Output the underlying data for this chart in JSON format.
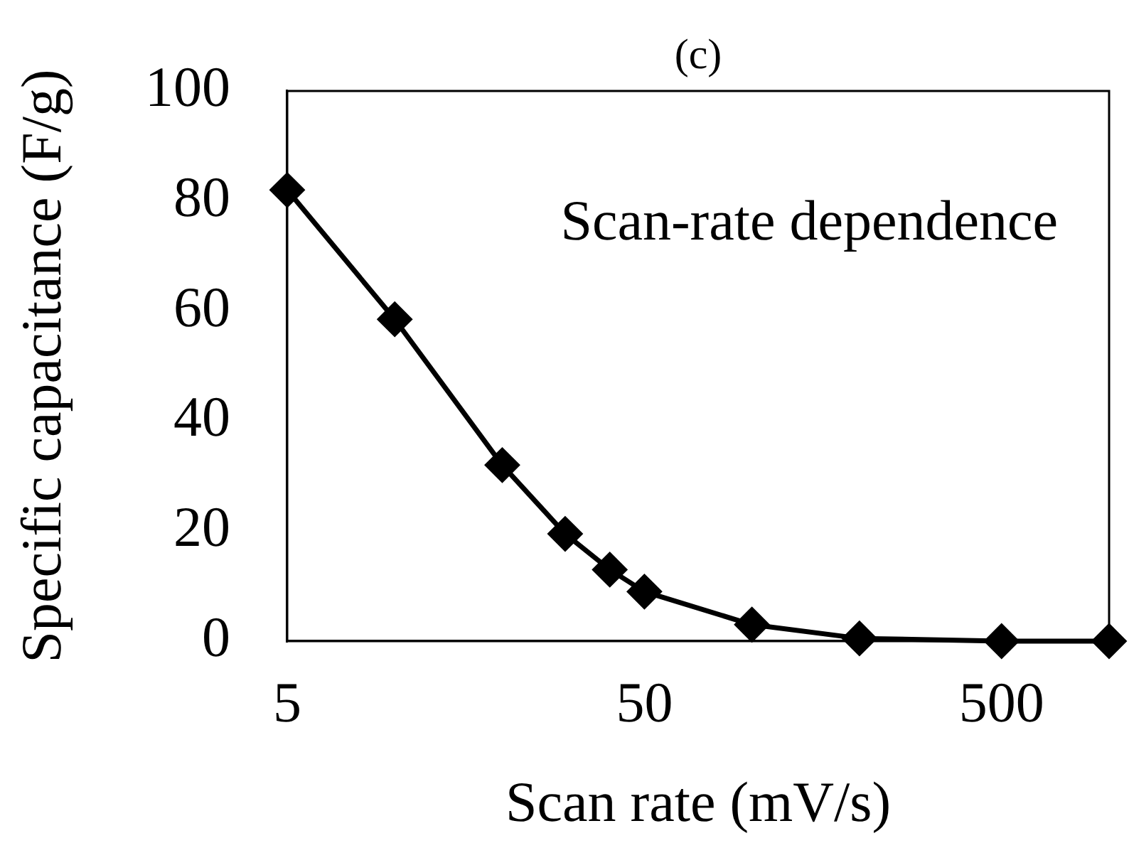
{
  "chart_data": {
    "type": "line",
    "title": "(c)",
    "xlabel": "Scan rate (mV/s)",
    "ylabel": "Specific capacitance (F/g)",
    "annotations": [
      "Scan-rate dependence"
    ],
    "x": [
      5,
      10,
      20,
      30,
      40,
      50,
      100,
      200,
      500,
      1000
    ],
    "series": [
      {
        "color": "#000000",
        "values": [
          82,
          58.5,
          32,
          19.5,
          13,
          9,
          3,
          0.5,
          0,
          0
        ]
      }
    ],
    "xlim": [
      5,
      1000
    ],
    "xticks": [
      5,
      50,
      500
    ],
    "ylim": [
      0,
      100
    ],
    "yticks": [
      0,
      20,
      40,
      60,
      80,
      100
    ],
    "log": "x",
    "marker": "diamond",
    "line_style": "solid"
  }
}
